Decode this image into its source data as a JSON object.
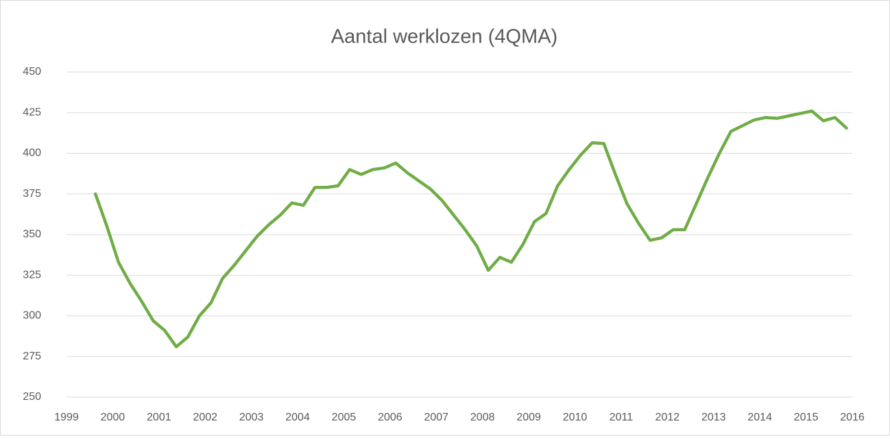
{
  "chart_data": {
    "type": "line",
    "title": "Aantal werklozen (4QMA)",
    "x": [
      1999.625,
      1999.875,
      2000.125,
      2000.375,
      2000.625,
      2000.875,
      2001.125,
      2001.375,
      2001.625,
      2001.875,
      2002.125,
      2002.375,
      2002.625,
      2002.875,
      2003.125,
      2003.375,
      2003.625,
      2003.875,
      2004.125,
      2004.375,
      2004.625,
      2004.875,
      2005.125,
      2005.375,
      2005.625,
      2005.875,
      2006.125,
      2006.375,
      2006.625,
      2006.875,
      2007.125,
      2007.375,
      2007.625,
      2007.875,
      2008.125,
      2008.375,
      2008.625,
      2008.875,
      2009.125,
      2009.375,
      2009.625,
      2009.875,
      2010.125,
      2010.375,
      2010.625,
      2010.875,
      2011.125,
      2011.375,
      2011.625,
      2011.875,
      2012.125,
      2012.375,
      2012.625,
      2012.875,
      2013.125,
      2013.375,
      2013.625,
      2013.875,
      2014.125,
      2014.375,
      2014.625,
      2014.875,
      2015.125,
      2015.375,
      2015.625,
      2015.875
    ],
    "values": [
      375,
      355,
      333,
      320,
      309,
      297,
      291,
      281,
      287,
      300,
      308,
      323,
      331,
      340,
      349,
      356,
      362,
      369.5,
      368,
      379,
      379,
      380,
      390,
      387,
      390,
      391,
      394,
      388,
      383,
      378,
      371,
      362,
      353,
      343,
      328,
      336,
      333,
      344,
      358,
      363,
      380,
      390,
      399,
      406.5,
      406,
      387,
      369,
      357,
      346.5,
      348,
      353,
      353,
      369,
      385,
      400,
      413.5,
      417,
      420.5,
      422,
      421.5,
      423,
      424.5,
      426,
      420,
      422,
      415.5
    ],
    "color": "#70ad47",
    "xlim": [
      1999,
      2016
    ],
    "xticks": [
      1999,
      2000,
      2001,
      2002,
      2003,
      2004,
      2005,
      2006,
      2007,
      2008,
      2009,
      2010,
      2011,
      2012,
      2013,
      2014,
      2015,
      2016
    ],
    "ylim": [
      250,
      450
    ],
    "yticks": [
      250,
      275,
      300,
      325,
      350,
      375,
      400,
      425,
      450
    ],
    "grid": true
  }
}
